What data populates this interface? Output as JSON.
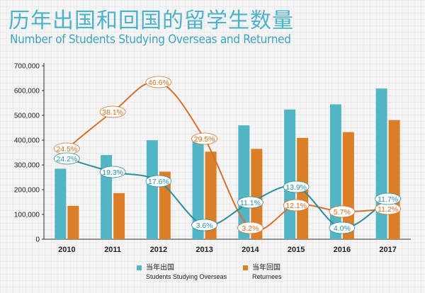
{
  "title": "历年出国和回国的留学生数量",
  "subtitle": "Number of Students Studying Overseas and Returned",
  "legend": {
    "overseas_cn": "当年出国",
    "overseas_en": "Students Studying Overseas",
    "returnees_cn": "当年回国",
    "returnees_en": "Returnees"
  },
  "colors": {
    "overseas": "#52b5c6",
    "returnees": "#da7f27",
    "overseas_line": "#2f8c9c",
    "returnees_line": "#d5712a"
  },
  "chart_data": {
    "type": "bar",
    "categories": [
      "2010",
      "2011",
      "2012",
      "2013",
      "2014",
      "2015",
      "2016",
      "2017"
    ],
    "ylim": [
      0,
      700000
    ],
    "yticks": [
      "0",
      "100,000",
      "200,000",
      "300,000",
      "400,000",
      "500,000",
      "600,000",
      "700,000"
    ],
    "series": [
      {
        "name": "Students Studying Overseas",
        "values": [
          284700,
          339700,
          399600,
          413900,
          459800,
          523700,
          544500,
          608400
        ]
      },
      {
        "name": "Returnees",
        "values": [
          134800,
          186200,
          272900,
          353500,
          364800,
          409100,
          432500,
          480900
        ]
      }
    ],
    "growth_lines": [
      {
        "name": "Students Studying Overseas growth",
        "labels": [
          "24.2%",
          "19.3%",
          "17.6%",
          "3.6%",
          "11.1%",
          "13.9%",
          "4.0%",
          "11.7%"
        ]
      },
      {
        "name": "Returnees growth",
        "labels": [
          "24.5%",
          "38.1%",
          "46.6%",
          "29.5%",
          "3.2%",
          "12.1%",
          "5.7%",
          "11.2%"
        ]
      }
    ]
  }
}
